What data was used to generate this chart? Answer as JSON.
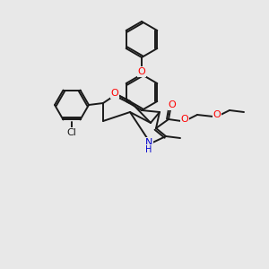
{
  "bg_color": "#e8e8e8",
  "bond_color": "#1a1a1a",
  "bond_width": 1.4,
  "atom_colors": {
    "O": "#ff0000",
    "N": "#0000cc",
    "Cl": "#1a1a1a",
    "C": "#1a1a1a"
  }
}
